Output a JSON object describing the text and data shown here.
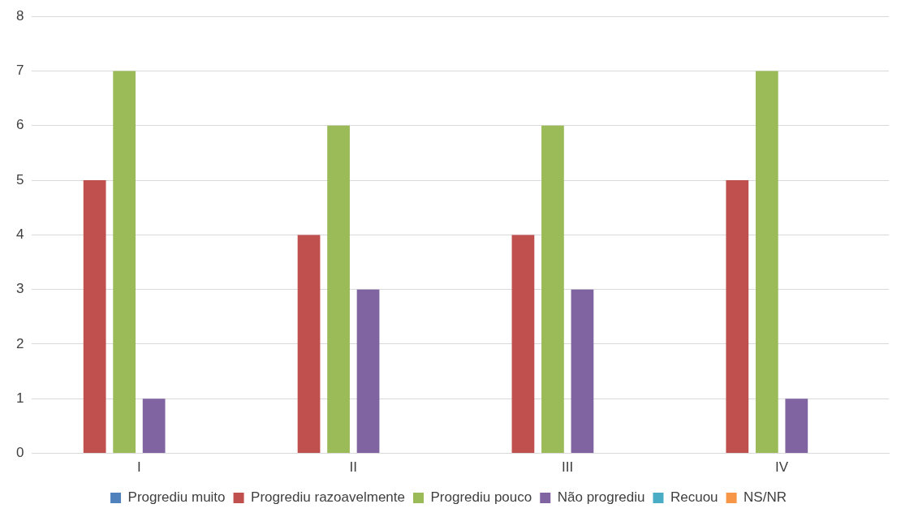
{
  "chart_data": {
    "type": "bar",
    "categories": [
      "I",
      "II",
      "III",
      "IV"
    ],
    "series": [
      {
        "name": "Progrediu muito",
        "color": "#4f81bd",
        "values": [
          0,
          0,
          0,
          0
        ]
      },
      {
        "name": "Progrediu razoavelmente",
        "color": "#c0504d",
        "values": [
          5,
          4,
          4,
          5
        ]
      },
      {
        "name": "Progrediu pouco",
        "color": "#9bbb59",
        "values": [
          7,
          6,
          6,
          7
        ]
      },
      {
        "name": "Não progrediu",
        "color": "#8064a2",
        "values": [
          1,
          3,
          3,
          1
        ]
      },
      {
        "name": "Recuou",
        "color": "#4bacc6",
        "values": [
          0,
          0,
          0,
          0
        ]
      },
      {
        "name": "NS/NR",
        "color": "#f79646",
        "values": [
          0,
          0,
          0,
          0
        ]
      }
    ],
    "ylim": [
      0,
      8
    ],
    "yticks": [
      0,
      1,
      2,
      3,
      4,
      5,
      6,
      7,
      8
    ],
    "grid": "y",
    "legend": "bottom"
  }
}
